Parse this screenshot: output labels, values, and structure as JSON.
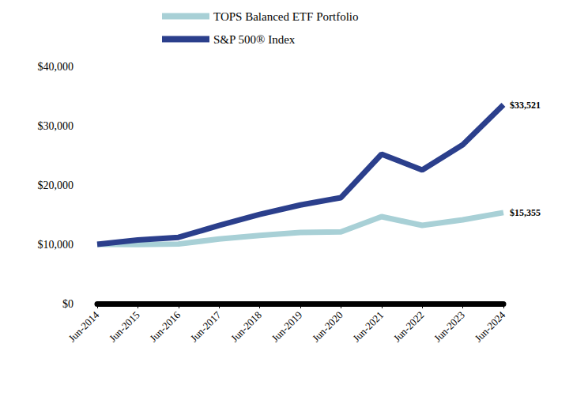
{
  "chart_data": {
    "type": "line",
    "categories": [
      "Jun-2014",
      "Jun-2015",
      "Jun-2016",
      "Jun-2017",
      "Jun-2018",
      "Jun-2019",
      "Jun-2020",
      "Jun-2021",
      "Jun-2022",
      "Jun-2023",
      "Jun-2024"
    ],
    "series": [
      {
        "name": "TOPS Balanced ETF Portfolio",
        "color": "#a8d0d6",
        "values": [
          10000,
          9950,
          10050,
          10900,
          11500,
          12000,
          12100,
          14670,
          13200,
          14130,
          15355
        ],
        "value_labels": [
          null,
          null,
          null,
          null,
          null,
          null,
          null,
          null,
          null,
          null,
          "$15,355"
        ]
      },
      {
        "name": "S&P 500® Index",
        "color": "#2b3f8c",
        "values": [
          10000,
          10742,
          11170,
          13170,
          15060,
          16630,
          17870,
          25200,
          22530,
          26800,
          33521
        ],
        "value_labels": [
          null,
          null,
          null,
          null,
          null,
          null,
          null,
          null,
          null,
          null,
          "$33,521"
        ]
      }
    ],
    "ylim": [
      0,
      40000
    ],
    "yticks": [
      {
        "value": 0,
        "label": "$0"
      },
      {
        "value": 10000,
        "label": "$10,000"
      },
      {
        "value": 20000,
        "label": "$20,000"
      },
      {
        "value": 30000,
        "label": "$30,000"
      },
      {
        "value": 40000,
        "label": "$40,000"
      }
    ],
    "grid": false,
    "legend": "top",
    "data_labels": true
  }
}
